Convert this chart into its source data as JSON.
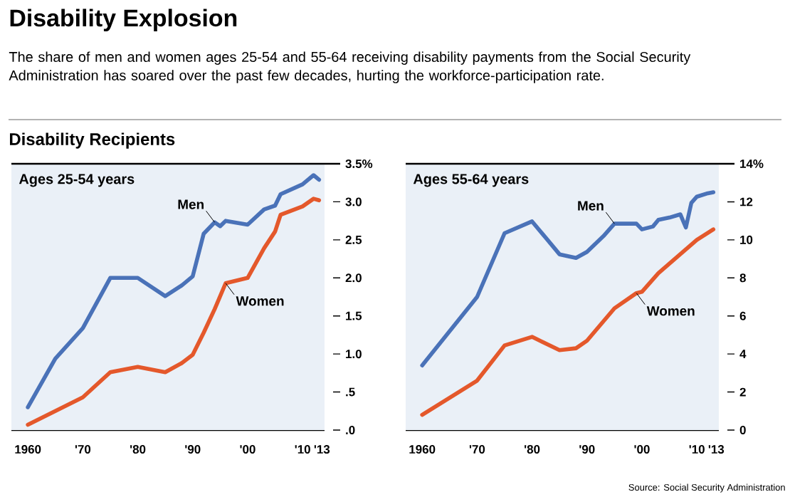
{
  "chart_data": [
    {
      "type": "line",
      "title": "Disability Explosion",
      "subtitle": "The share of men and women ages 25-54 and 55-64 receiving disability payments from the Social Security Administration has soared over the past few decades, hurting the workforce-participation rate.",
      "annotations": [
        "Disability Recipients",
        "Ages 25-54 years"
      ],
      "xlim": [
        1957,
        2014
      ],
      "xticks": [
        {
          "value": 1960,
          "label": "1960"
        },
        {
          "value": 1970,
          "label": "'70"
        },
        {
          "value": 1980,
          "label": "'80"
        },
        {
          "value": 1990,
          "label": "'90"
        },
        {
          "value": 2000,
          "label": "'00"
        },
        {
          "value": 2010,
          "label": "'10"
        },
        {
          "value": 2013,
          "label": "'13"
        }
      ],
      "ylim": [
        0,
        3.5
      ],
      "yticks": [
        {
          "value": 0,
          "label": ".0"
        },
        {
          "value": 0.5,
          "label": ".5"
        },
        {
          "value": 1,
          "label": "1.0"
        },
        {
          "value": 1.5,
          "label": "1.5"
        },
        {
          "value": 2,
          "label": "2.0"
        },
        {
          "value": 2.5,
          "label": "2.5"
        },
        {
          "value": 3,
          "label": "3.0"
        },
        {
          "value": 3.5,
          "label": "3.5%"
        }
      ],
      "series": [
        {
          "name": "Men",
          "color": "#4a72b8",
          "x": [
            1960,
            1965,
            1970,
            1975,
            1980,
            1985,
            1988,
            1990,
            1992,
            1994,
            1995,
            1996,
            2000,
            2003,
            2005,
            2006,
            2010,
            2012,
            2013
          ],
          "values": [
            0.3,
            0.94,
            1.34,
            2.0,
            2.0,
            1.76,
            1.9,
            2.02,
            2.58,
            2.73,
            2.68,
            2.75,
            2.7,
            2.9,
            2.95,
            3.1,
            3.23,
            3.35,
            3.29
          ]
        },
        {
          "name": "Women",
          "color": "#e4582b",
          "x": [
            1960,
            1970,
            1975,
            1980,
            1985,
            1988,
            1990,
            1992,
            1994,
            1996,
            2000,
            2003,
            2005,
            2006,
            2010,
            2012,
            2013
          ],
          "values": [
            0.07,
            0.43,
            0.76,
            0.83,
            0.76,
            0.88,
            0.99,
            1.28,
            1.59,
            1.93,
            2.0,
            2.39,
            2.61,
            2.83,
            2.94,
            3.04,
            3.02
          ]
        }
      ]
    },
    {
      "type": "line",
      "annotations": [
        "Ages 55-64 years",
        "Source: Social Security Administration"
      ],
      "xlim": [
        1957,
        2014
      ],
      "xticks": [
        {
          "value": 1960,
          "label": "1960"
        },
        {
          "value": 1970,
          "label": "'70"
        },
        {
          "value": 1980,
          "label": "'80"
        },
        {
          "value": 1990,
          "label": "'90"
        },
        {
          "value": 2000,
          "label": "'00"
        },
        {
          "value": 2010,
          "label": "'10"
        },
        {
          "value": 2013,
          "label": "'13"
        }
      ],
      "ylim": [
        0,
        14
      ],
      "yticks": [
        0,
        2,
        4,
        6,
        8,
        10,
        12,
        {
          "value": 14,
          "label": "14%"
        }
      ],
      "series": [
        {
          "name": "Men",
          "color": "#4a72b8",
          "x": [
            1960,
            1970,
            1975,
            1980,
            1985,
            1988,
            1990,
            1993,
            1995,
            1999,
            2000,
            2002,
            2003,
            2005,
            2007,
            2008,
            2009,
            2010,
            2012,
            2013
          ],
          "values": [
            3.4,
            7.0,
            10.35,
            10.97,
            9.24,
            9.05,
            9.37,
            10.2,
            10.85,
            10.85,
            10.55,
            10.7,
            11.05,
            11.17,
            11.34,
            10.65,
            11.95,
            12.27,
            12.45,
            12.5
          ]
        },
        {
          "name": "Women",
          "color": "#e4582b",
          "x": [
            1960,
            1970,
            1975,
            1980,
            1985,
            1988,
            1990,
            1995,
            1999,
            2000,
            2003,
            2005,
            2007,
            2010,
            2013
          ],
          "values": [
            0.8,
            2.6,
            4.45,
            4.9,
            4.2,
            4.3,
            4.7,
            6.4,
            7.2,
            7.27,
            8.25,
            8.75,
            9.25,
            10.0,
            10.55
          ]
        }
      ]
    }
  ]
}
